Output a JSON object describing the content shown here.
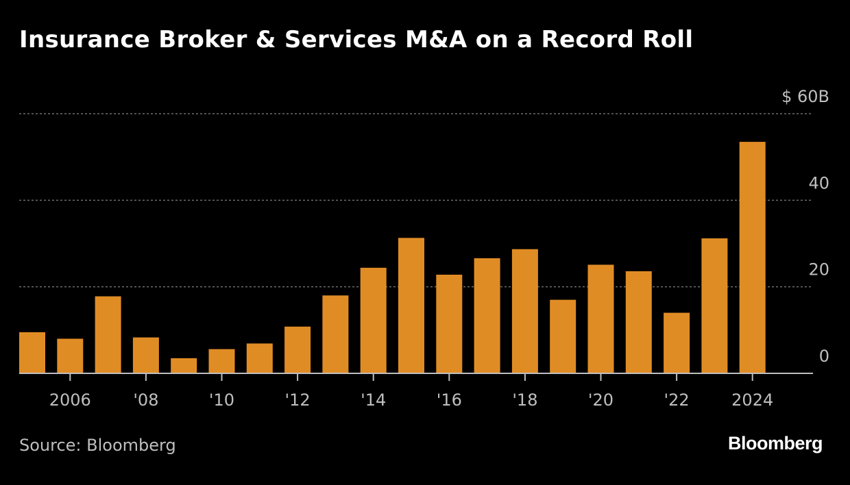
{
  "title": "Insurance Broker & Services M&A on a Record Roll",
  "source": "Source: Bloomberg",
  "logo": "Bloomberg",
  "colors": {
    "background": "#000000",
    "bar": "#E08C25",
    "grid": "#6e6e6e",
    "axis": "#bfbfbf",
    "text": "#bfbfbf"
  },
  "chart_data": {
    "type": "bar",
    "categories": [
      "2005",
      "2006",
      "2007",
      "2008",
      "2009",
      "2010",
      "2011",
      "2012",
      "2013",
      "2014",
      "2015",
      "2016",
      "2017",
      "2018",
      "2019",
      "2020",
      "2021",
      "2022",
      "2023",
      "2024"
    ],
    "values": [
      9.5,
      8,
      17.8,
      8.3,
      3.5,
      5.6,
      6.9,
      10.8,
      18,
      24.4,
      31.3,
      22.8,
      26.6,
      28.7,
      17,
      25.1,
      23.6,
      14,
      31.2,
      53.5
    ],
    "ylim": [
      0,
      60
    ],
    "yticks": [
      {
        "value": 0,
        "label": "0"
      },
      {
        "value": 20,
        "label": "20"
      },
      {
        "value": 40,
        "label": "40"
      },
      {
        "value": 60,
        "label": "$ 60B"
      }
    ],
    "xticks": [
      {
        "category": "2006",
        "label": "2006"
      },
      {
        "category": "2008",
        "label": "'08"
      },
      {
        "category": "2010",
        "label": "'10"
      },
      {
        "category": "2012",
        "label": "'12"
      },
      {
        "category": "2014",
        "label": "'14"
      },
      {
        "category": "2016",
        "label": "'16"
      },
      {
        "category": "2018",
        "label": "'18"
      },
      {
        "category": "2020",
        "label": "'20"
      },
      {
        "category": "2022",
        "label": "'22"
      },
      {
        "category": "2024",
        "label": "2024"
      }
    ],
    "grid": true,
    "y_axis_position": "right"
  }
}
